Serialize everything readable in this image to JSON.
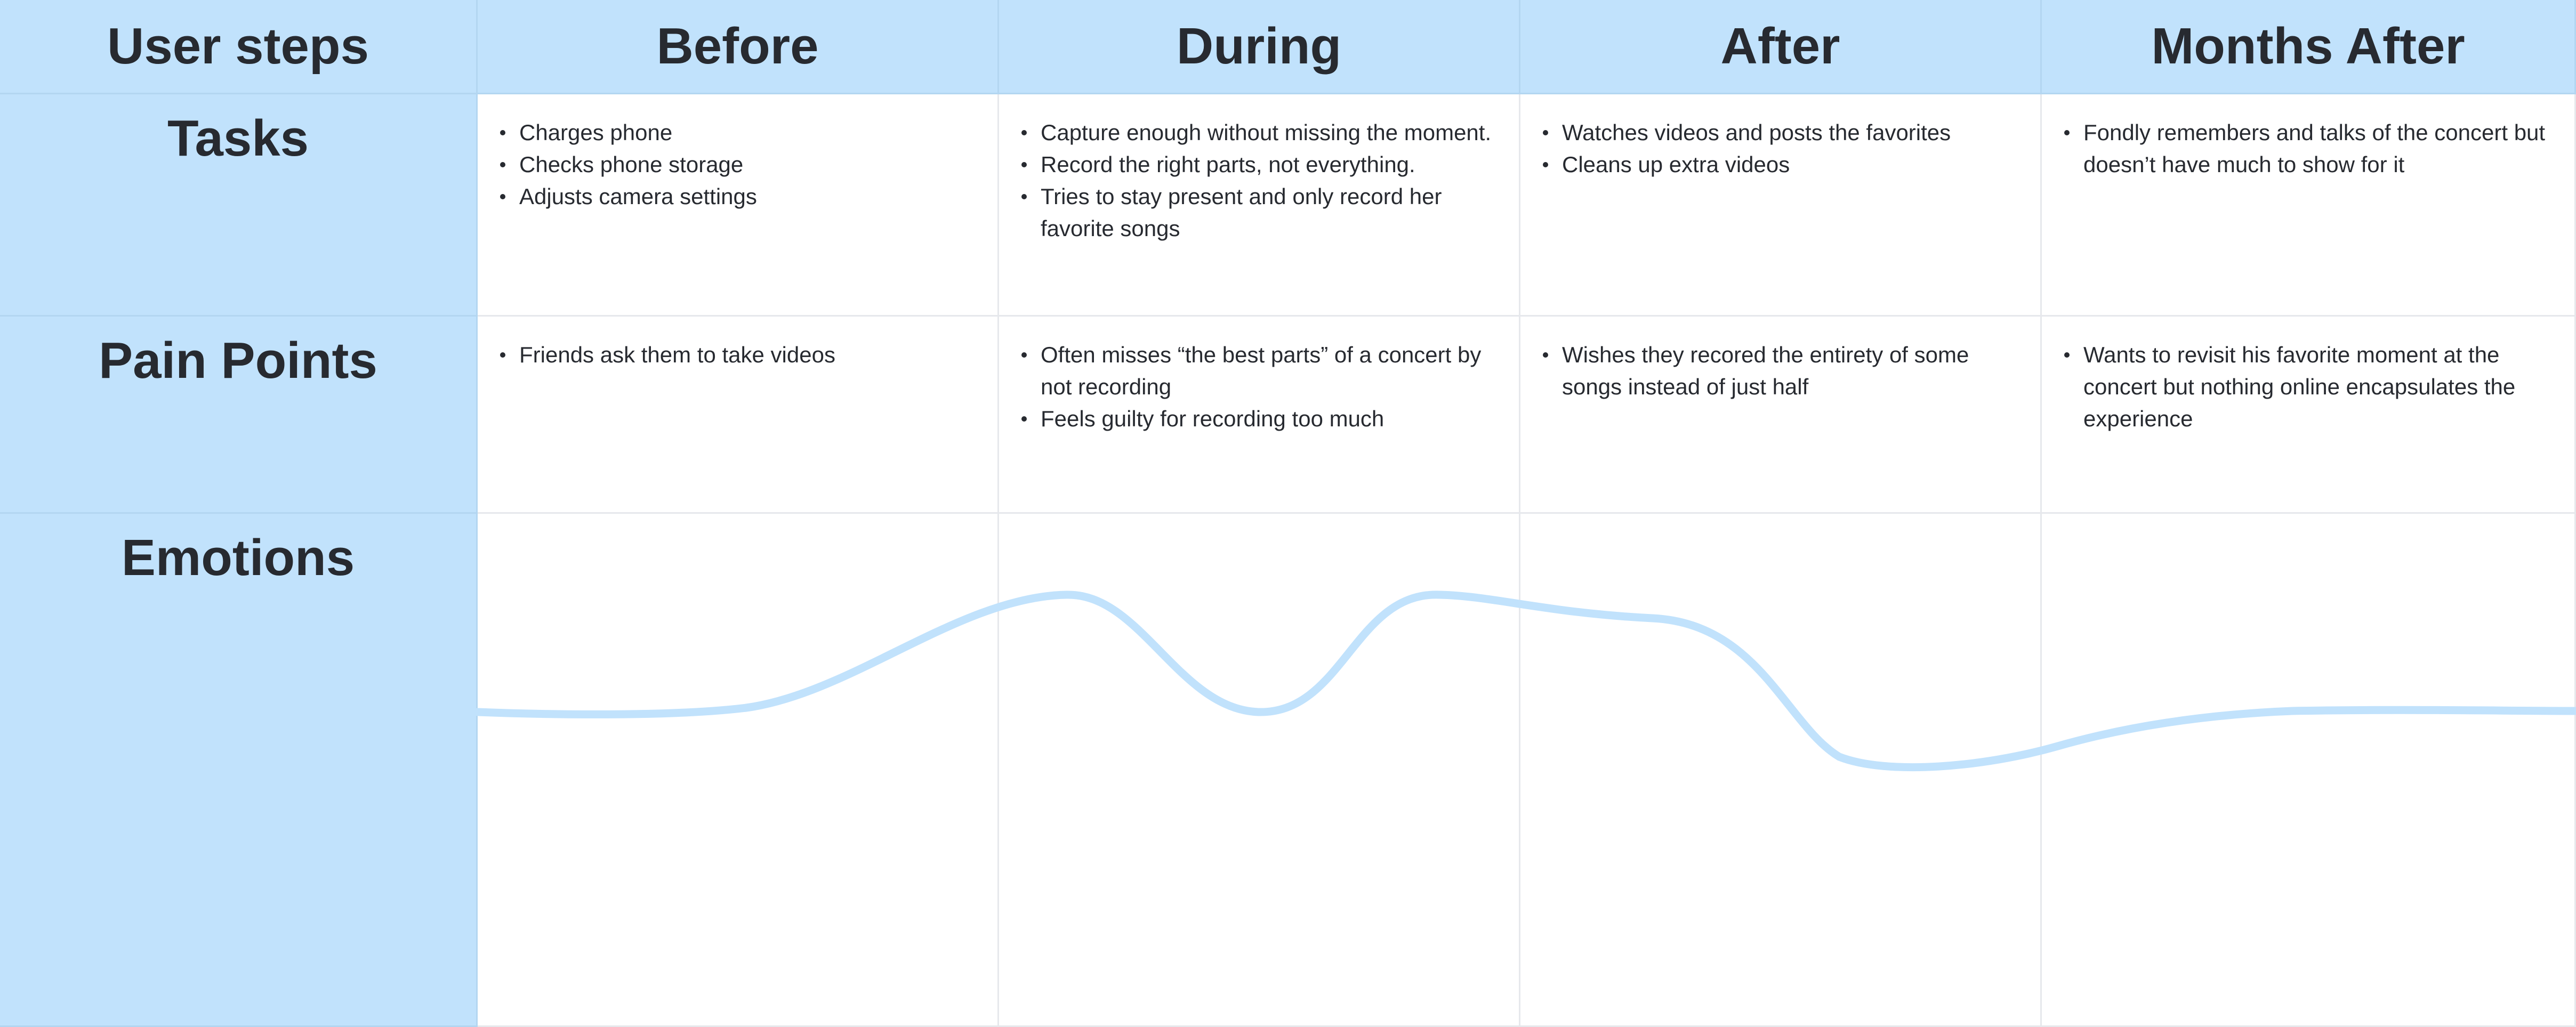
{
  "header": {
    "corner": "User steps",
    "stages": [
      "Before",
      "During",
      "After",
      "Months After"
    ]
  },
  "rows": [
    {
      "label": "Tasks",
      "cells": [
        [
          "Charges phone",
          "Checks phone storage",
          "Adjusts camera settings"
        ],
        [
          "Capture enough without missing the moment.",
          "Record the right parts, not everything.",
          "Tries to stay present and only record her favorite songs"
        ],
        [
          "Watches videos and posts the favorites",
          "Cleans up extra videos"
        ],
        [
          "Fondly remembers and talks of the concert but doesn’t have much to show for it"
        ]
      ]
    },
    {
      "label": "Pain Points",
      "cells": [
        [
          "Friends ask them to take videos"
        ],
        [
          "Often misses “the best parts” of a concert by not recording",
          "Feels guilty for recording too much"
        ],
        [
          "Wishes they recored the entirety of some songs instead of just half"
        ],
        [
          "Wants to revisit his favorite moment at the concert but nothing online encapsulates the experience"
        ]
      ]
    },
    {
      "label": "Emotions",
      "cells": []
    }
  ],
  "colors": {
    "header_bg": "#c1e2fc",
    "emotion_line": "#c1e2fc",
    "text": "#272a30",
    "grid": "#e6e8ec"
  }
}
